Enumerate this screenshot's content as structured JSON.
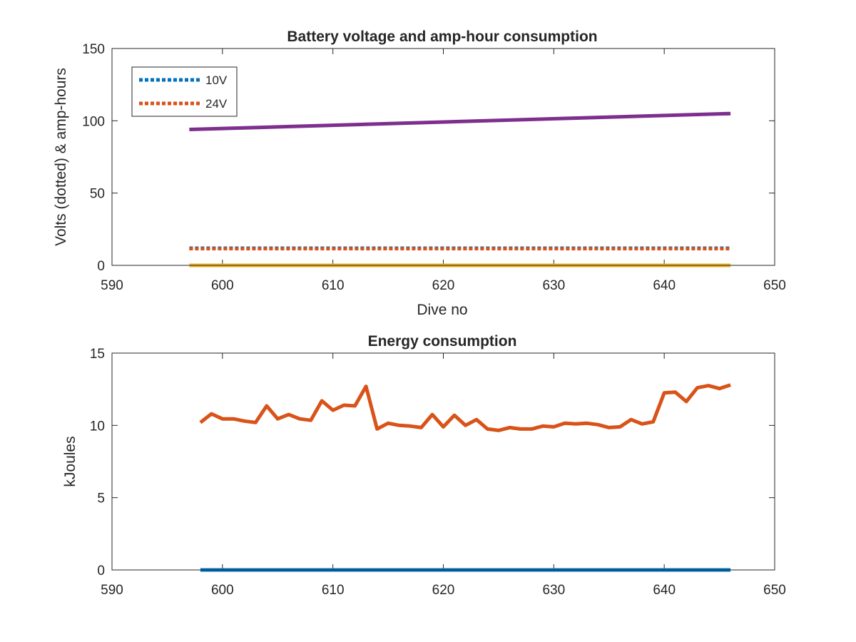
{
  "chart_data": [
    {
      "type": "line",
      "title": "Battery voltage and amp-hour consumption",
      "xlabel": "Dive no",
      "ylabel": "Volts (dotted) & amp-hours",
      "xlim": [
        590,
        650
      ],
      "ylim": [
        0,
        150
      ],
      "xticks": [
        "590",
        "600",
        "610",
        "620",
        "630",
        "640",
        "650"
      ],
      "yticks": [
        "0",
        "50",
        "100",
        "150"
      ],
      "legend": {
        "placement": "top-left",
        "entries": [
          "10V",
          "24V"
        ]
      },
      "grid": false,
      "series": [
        {
          "name": "10V",
          "style": "dotted",
          "color": "#0072BD",
          "x": [
            597,
            646
          ],
          "y": [
            12,
            12
          ]
        },
        {
          "name": "24V",
          "style": "dotted",
          "color": "#D95319",
          "x": [
            597,
            646
          ],
          "y": [
            11.5,
            11.5
          ]
        },
        {
          "style": "solid",
          "color": "#7E2F8E",
          "x": [
            597,
            646
          ],
          "y": [
            94,
            105
          ]
        },
        {
          "style": "solid",
          "color": "#EDB120",
          "x": [
            597,
            646
          ],
          "y": [
            0,
            0
          ]
        }
      ]
    },
    {
      "type": "line",
      "title": "Energy consumption",
      "xlabel": "",
      "ylabel": "kJoules",
      "xlim": [
        590,
        650
      ],
      "ylim": [
        0,
        15
      ],
      "xticks": [
        "590",
        "600",
        "610",
        "620",
        "630",
        "640",
        "650"
      ],
      "yticks": [
        "0",
        "5",
        "10",
        "15"
      ],
      "grid": false,
      "series": [
        {
          "style": "solid",
          "color": "#0072BD",
          "x": [
            598,
            646
          ],
          "y": [
            0,
            0
          ]
        },
        {
          "style": "solid",
          "color": "#D95319",
          "x": [
            598,
            599,
            600,
            601,
            602,
            603,
            604,
            605,
            606,
            607,
            608,
            609,
            610,
            611,
            612,
            613,
            614,
            615,
            616,
            617,
            618,
            619,
            620,
            621,
            622,
            623,
            624,
            625,
            626,
            627,
            628,
            629,
            630,
            631,
            632,
            633,
            634,
            635,
            636,
            637,
            638,
            639,
            640,
            641,
            642,
            643,
            644,
            645,
            646
          ],
          "y": [
            10.2,
            10.8,
            10.45,
            10.45,
            10.3,
            10.2,
            11.35,
            10.45,
            10.75,
            10.45,
            10.35,
            11.7,
            11.05,
            11.4,
            11.35,
            12.7,
            9.75,
            10.15,
            10.0,
            9.95,
            9.85,
            10.75,
            9.9,
            10.7,
            10.0,
            10.4,
            9.75,
            9.65,
            9.85,
            9.75,
            9.75,
            9.95,
            9.9,
            10.15,
            10.1,
            10.15,
            10.05,
            9.85,
            9.9,
            10.4,
            10.1,
            10.25,
            12.25,
            12.3,
            11.65,
            12.6,
            12.75,
            12.55,
            12.8
          ]
        }
      ]
    }
  ]
}
